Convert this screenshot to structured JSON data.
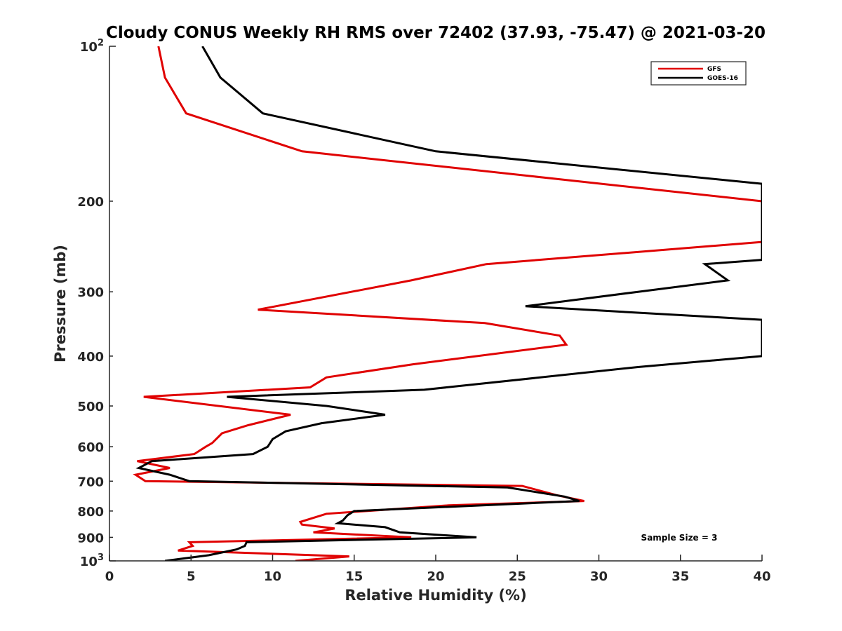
{
  "chart_data": {
    "type": "line",
    "title": "Cloudy CONUS Weekly RH RMS over 72402 (37.93, -75.47) @ 2021-03-20",
    "xlabel": "Relative Humidity (%)",
    "ylabel": "Pressure (mb)",
    "xlim": [
      0,
      40
    ],
    "ylim": [
      100,
      1000
    ],
    "y_scale": "log",
    "y_reversed": true,
    "grid": false,
    "legend_position": "top-right",
    "x_ticks": [
      "0",
      "5",
      "10",
      "15",
      "20",
      "25",
      "30",
      "35",
      "40"
    ],
    "x_tick_values": [
      0,
      5,
      10,
      15,
      20,
      25,
      30,
      35,
      40
    ],
    "y_ticks": [
      {
        "value": 100,
        "base": "10",
        "exp": "2"
      },
      {
        "value": 200,
        "base": "200",
        "exp": ""
      },
      {
        "value": 300,
        "base": "300",
        "exp": ""
      },
      {
        "value": 400,
        "base": "400",
        "exp": ""
      },
      {
        "value": 500,
        "base": "500",
        "exp": ""
      },
      {
        "value": 600,
        "base": "600",
        "exp": ""
      },
      {
        "value": 700,
        "base": "700",
        "exp": ""
      },
      {
        "value": 800,
        "base": "800",
        "exp": ""
      },
      {
        "value": 900,
        "base": "900",
        "exp": ""
      },
      {
        "value": 1000,
        "base": "10",
        "exp": "3"
      }
    ],
    "annotation": "Sample Size = 3",
    "series": [
      {
        "name": "GFS",
        "color": "#e00000",
        "points": [
          [
            3.0,
            100
          ],
          [
            3.4,
            115
          ],
          [
            4.7,
            135
          ],
          [
            11.8,
            160
          ],
          [
            40,
            200
          ],
          [
            40,
            240
          ],
          [
            23.1,
            265
          ],
          [
            18.5,
            285
          ],
          [
            9.1,
            325
          ],
          [
            23.0,
            345
          ],
          [
            27.6,
            365
          ],
          [
            28.0,
            380
          ],
          [
            18.6,
            415
          ],
          [
            13.3,
            440
          ],
          [
            12.3,
            460
          ],
          [
            2.1,
            480
          ],
          [
            11.1,
            520
          ],
          [
            8.5,
            545
          ],
          [
            6.9,
            565
          ],
          [
            6.3,
            590
          ],
          [
            5.9,
            600
          ],
          [
            5.2,
            620
          ],
          [
            1.7,
            640
          ],
          [
            3.7,
            660
          ],
          [
            1.6,
            680
          ],
          [
            2.2,
            700
          ],
          [
            25.3,
            715
          ],
          [
            27.4,
            745
          ],
          [
            29.1,
            765
          ],
          [
            20.8,
            780
          ],
          [
            13.3,
            810
          ],
          [
            11.7,
            840
          ],
          [
            11.8,
            850
          ],
          [
            13.8,
            865
          ],
          [
            12.5,
            880
          ],
          [
            18.5,
            900
          ],
          [
            4.9,
            920
          ],
          [
            5.1,
            935
          ],
          [
            4.2,
            955
          ],
          [
            14.7,
            980
          ],
          [
            11.4,
            1000
          ]
        ]
      },
      {
        "name": "GOES-16",
        "color": "#000000",
        "points": [
          [
            5.7,
            100
          ],
          [
            6.8,
            115
          ],
          [
            9.4,
            135
          ],
          [
            20.0,
            160
          ],
          [
            40,
            185
          ],
          [
            40,
            260
          ],
          [
            36.5,
            265
          ],
          [
            37.9,
            285
          ],
          [
            32.4,
            300
          ],
          [
            25.5,
            320
          ],
          [
            40,
            340
          ],
          [
            40,
            400
          ],
          [
            32.4,
            420
          ],
          [
            19.3,
            465
          ],
          [
            7.2,
            480
          ],
          [
            13.3,
            500
          ],
          [
            16.9,
            520
          ],
          [
            13.0,
            540
          ],
          [
            10.8,
            560
          ],
          [
            10.0,
            580
          ],
          [
            9.7,
            600
          ],
          [
            8.8,
            620
          ],
          [
            2.6,
            640
          ],
          [
            1.8,
            660
          ],
          [
            3.7,
            680
          ],
          [
            4.9,
            700
          ],
          [
            24.4,
            720
          ],
          [
            27.9,
            750
          ],
          [
            28.8,
            765
          ],
          [
            15.0,
            800
          ],
          [
            14.6,
            815
          ],
          [
            14.3,
            835
          ],
          [
            14.0,
            845
          ],
          [
            16.9,
            860
          ],
          [
            17.8,
            880
          ],
          [
            22.5,
            900
          ],
          [
            8.4,
            920
          ],
          [
            8.3,
            935
          ],
          [
            7.8,
            950
          ],
          [
            6.1,
            975
          ],
          [
            3.4,
            1000
          ]
        ]
      }
    ]
  }
}
